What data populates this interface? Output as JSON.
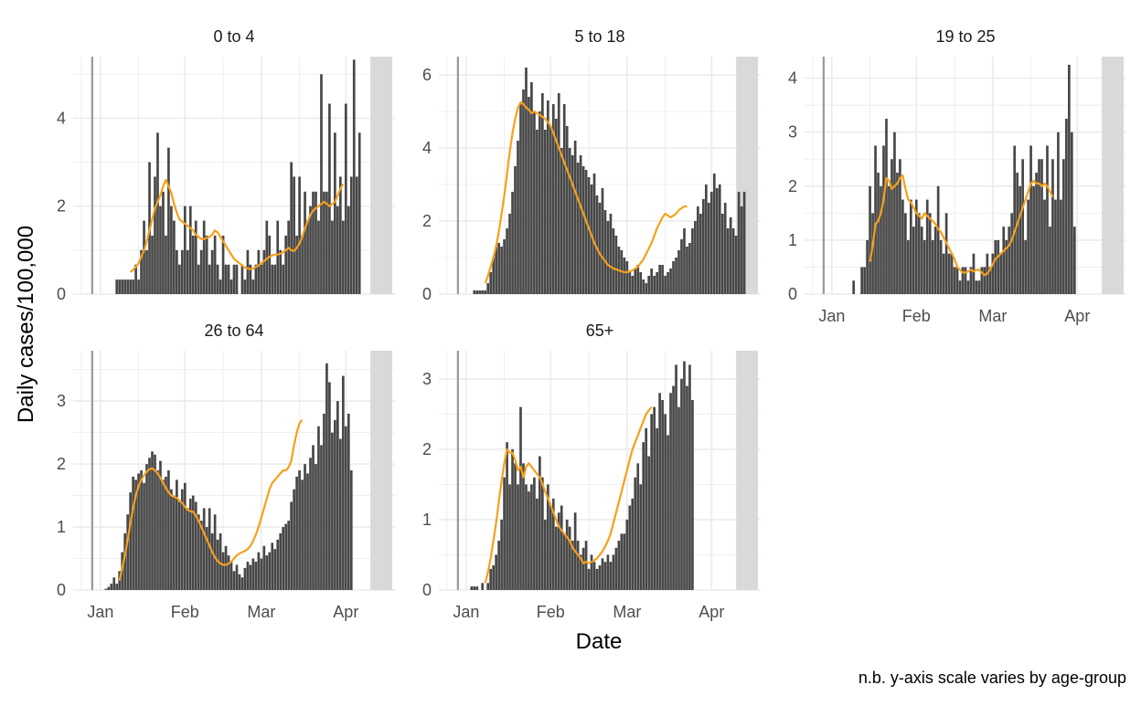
{
  "ylabel": "Daily cases/100,000",
  "xlabel": "Date",
  "note": "n.b. y-axis scale varies by age-group",
  "colors": {
    "bar": "#474747",
    "line": "#f7a01c",
    "shade": "#d9d9d9",
    "grid": "#ebebeb",
    "vline": "#999999"
  },
  "chart_data": [
    {
      "type": "bar",
      "title": "0 to 4",
      "x_range": [
        "2020-12-22",
        "2021-04-19"
      ],
      "ylim": [
        0,
        5.4
      ],
      "y_ticks": [
        0,
        2,
        4
      ],
      "x_ticks": [
        "Jan",
        "Feb",
        "Mar",
        "Apr"
      ],
      "vline_date": "2020-12-29",
      "shaded_range": [
        "2021-04-10",
        "2021-04-18"
      ],
      "bars_start": "2021-01-07",
      "bars": [
        0.33,
        0.33,
        0.33,
        0.33,
        0.33,
        0.33,
        0.33,
        0.67,
        0.33,
        1.0,
        1.67,
        1.0,
        3.0,
        1.33,
        2.67,
        3.67,
        2.0,
        2.33,
        1.33,
        3.33,
        2.0,
        1.67,
        1.0,
        0.67,
        1.0,
        2.0,
        1.0,
        2.0,
        1.33,
        1.67,
        0.67,
        1.0,
        1.67,
        1.33,
        0.67,
        1.0,
        1.33,
        0.67,
        0.33,
        1.33,
        0.67,
        0.67,
        0.33,
        0.67,
        0.67,
        0.0,
        0.67,
        0.33,
        1.0,
        0.67,
        0.33,
        0.67,
        1.0,
        0.67,
        1.0,
        1.67,
        1.33,
        0.67,
        0.67,
        1.67,
        1.0,
        0.67,
        1.33,
        1.67,
        3.0,
        2.67,
        1.33,
        2.67,
        1.33,
        2.33,
        1.67,
        2.0,
        2.33,
        2.33,
        1.67,
        5.0,
        2.33,
        2.33,
        4.33,
        1.67,
        3.67,
        2.0,
        2.67,
        1.67,
        4.33,
        2.0,
        2.67,
        5.33,
        2.67,
        3.67
      ],
      "line_start": "2021-01-12",
      "line": [
        0.5,
        0.55,
        0.62,
        0.7,
        0.85,
        1.0,
        1.2,
        1.45,
        1.7,
        1.95,
        2.1,
        2.25,
        2.45,
        2.6,
        2.45,
        2.3,
        2.05,
        1.85,
        1.7,
        1.65,
        1.6,
        1.55,
        1.5,
        1.45,
        1.35,
        1.3,
        1.25,
        1.25,
        1.28,
        1.3,
        1.35,
        1.45,
        1.4,
        1.3,
        1.2,
        1.1,
        1.0,
        0.9,
        0.8,
        0.75,
        0.7,
        0.65,
        0.6,
        0.58,
        0.57,
        0.58,
        0.62,
        0.65,
        0.7,
        0.75,
        0.8,
        0.85,
        0.88,
        0.9,
        0.9,
        0.92,
        0.95,
        1.0,
        1.05,
        1.0,
        0.98,
        1.05,
        1.15,
        1.3,
        1.5,
        1.65,
        1.8,
        1.9,
        1.95,
        2.0,
        2.05,
        2.1,
        2.05,
        2.0,
        2.05,
        2.1,
        2.25,
        2.4,
        2.5
      ]
    },
    {
      "type": "bar",
      "title": "5 to 18",
      "x_range": [
        "2020-12-22",
        "2021-04-19"
      ],
      "ylim": [
        0,
        6.5
      ],
      "y_ticks": [
        0,
        2,
        4,
        6
      ],
      "x_ticks": [
        "Jan",
        "Feb",
        "Mar",
        "Apr"
      ],
      "vline_date": "2020-12-29",
      "shaded_range": [
        "2021-04-10",
        "2021-04-18"
      ],
      "bars_start": "2021-01-04",
      "bars": [
        0.1,
        0.1,
        0.1,
        0.1,
        0.1,
        0.3,
        0.6,
        1.0,
        1.3,
        1.4,
        1.3,
        1.5,
        1.8,
        2.2,
        2.8,
        3.5,
        4.2,
        5.2,
        5.6,
        6.2,
        5.4,
        5.8,
        5.0,
        4.5,
        5.0,
        5.5,
        4.5,
        5.3,
        4.6,
        5.2,
        4.8,
        5.5,
        4.0,
        5.2,
        4.6,
        4.0,
        3.8,
        4.2,
        3.6,
        3.8,
        3.5,
        3.4,
        3.2,
        3.0,
        3.3,
        2.7,
        2.5,
        2.9,
        2.3,
        2.0,
        2.2,
        1.8,
        1.6,
        1.3,
        1.2,
        1.0,
        0.9,
        0.6,
        0.5,
        0.7,
        0.8,
        0.6,
        0.4,
        0.3,
        0.5,
        0.7,
        0.5,
        0.6,
        0.8,
        0.8,
        0.5,
        0.6,
        0.7,
        0.9,
        1.0,
        1.2,
        1.5,
        1.8,
        1.3,
        1.4,
        1.8,
        2.0,
        2.4,
        2.2,
        2.6,
        3.0,
        2.5,
        2.8,
        3.3,
        2.9,
        3.0,
        2.2,
        2.5,
        1.8,
        2.1,
        1.8,
        1.6,
        2.8,
        2.4,
        2.8
      ],
      "line_start": "2021-01-08",
      "line": [
        0.3,
        0.5,
        0.75,
        1.0,
        1.3,
        1.7,
        2.2,
        2.7,
        3.3,
        3.9,
        4.4,
        4.8,
        5.1,
        5.25,
        5.2,
        5.1,
        5.05,
        4.95,
        5.0,
        4.95,
        4.9,
        4.85,
        4.8,
        4.7,
        4.6,
        4.4,
        4.2,
        4.0,
        3.8,
        3.6,
        3.4,
        3.2,
        3.0,
        2.8,
        2.6,
        2.4,
        2.2,
        2.0,
        1.8,
        1.6,
        1.4,
        1.25,
        1.1,
        1.0,
        0.9,
        0.8,
        0.75,
        0.7,
        0.68,
        0.65,
        0.62,
        0.6,
        0.6,
        0.62,
        0.65,
        0.7,
        0.75,
        0.85,
        0.95,
        1.1,
        1.25,
        1.4,
        1.6,
        1.8,
        1.95,
        2.1,
        2.2,
        2.15,
        2.1,
        2.15,
        2.2,
        2.3,
        2.35,
        2.4,
        2.4
      ]
    },
    {
      "type": "bar",
      "title": "19 to 25",
      "x_range": [
        "2020-12-22",
        "2021-04-19"
      ],
      "ylim": [
        0,
        4.4
      ],
      "y_ticks": [
        0,
        1,
        2,
        3,
        4
      ],
      "x_ticks": [
        "Jan",
        "Feb",
        "Mar",
        "Apr"
      ],
      "vline_date": "2020-12-29",
      "shaded_range": [
        "2021-04-10",
        "2021-04-18"
      ],
      "bars_start": "2021-01-09",
      "bars": [
        0.25,
        0.0,
        0.0,
        0.5,
        0.5,
        1.0,
        2.0,
        1.5,
        2.75,
        2.25,
        2.0,
        2.75,
        3.25,
        2.0,
        2.5,
        3.0,
        2.25,
        2.5,
        1.75,
        1.5,
        1.0,
        1.75,
        1.25,
        1.75,
        1.5,
        1.25,
        1.0,
        1.75,
        1.5,
        1.0,
        1.25,
        2.0,
        1.0,
        0.75,
        1.5,
        0.75,
        0.75,
        0.5,
        0.5,
        0.25,
        0.5,
        0.5,
        0.25,
        0.5,
        0.75,
        0.25,
        0.25,
        0.5,
        0.5,
        0.75,
        0.5,
        0.75,
        1.0,
        1.0,
        0.75,
        1.25,
        1.0,
        1.25,
        1.5,
        2.75,
        2.25,
        2.0,
        2.5,
        1.0,
        1.75,
        2.75,
        2.0,
        2.25,
        2.5,
        2.5,
        1.75,
        2.75,
        1.25,
        2.5,
        1.75,
        3.0,
        1.75,
        2.5,
        3.25,
        4.25,
        3.0,
        1.25
      ],
      "line_start": "2021-01-15",
      "line": [
        0.6,
        0.9,
        1.3,
        1.35,
        1.5,
        1.75,
        2.15,
        2.1,
        1.95,
        2.0,
        2.05,
        2.15,
        2.2,
        1.95,
        1.75,
        1.7,
        1.6,
        1.5,
        1.45,
        1.4,
        1.5,
        1.45,
        1.4,
        1.35,
        1.3,
        1.2,
        1.15,
        1.05,
        0.95,
        0.85,
        0.75,
        0.65,
        0.5,
        0.45,
        0.4,
        0.4,
        0.42,
        0.45,
        0.42,
        0.45,
        0.45,
        0.4,
        0.35,
        0.38,
        0.45,
        0.55,
        0.65,
        0.7,
        0.75,
        0.8,
        0.85,
        0.9,
        1.0,
        1.15,
        1.3,
        1.45,
        1.6,
        1.75,
        1.9,
        2.05,
        2.1,
        2.05,
        2.05,
        2.0,
        2.05,
        2.0,
        1.9,
        1.8
      ]
    },
    {
      "type": "bar",
      "title": "26 to 64",
      "x_range": [
        "2020-12-22",
        "2021-04-19"
      ],
      "ylim": [
        0,
        3.8
      ],
      "y_ticks": [
        0,
        1,
        2,
        3
      ],
      "x_ticks": [
        "Jan",
        "Feb",
        "Mar",
        "Apr"
      ],
      "vline_date": "2020-12-29",
      "shaded_range": [
        "2021-04-10",
        "2021-04-18"
      ],
      "bars_start": "2021-01-02",
      "bars": [
        0.0,
        0.02,
        0.05,
        0.1,
        0.2,
        0.1,
        0.3,
        0.6,
        0.9,
        1.2,
        1.55,
        1.8,
        1.75,
        1.85,
        1.9,
        1.7,
        2.0,
        2.1,
        2.2,
        2.15,
        1.9,
        2.05,
        1.75,
        1.8,
        1.9,
        1.6,
        1.5,
        1.75,
        1.4,
        1.6,
        1.7,
        1.3,
        1.45,
        1.5,
        1.4,
        1.2,
        1.1,
        1.3,
        1.0,
        1.3,
        0.9,
        1.2,
        0.8,
        0.9,
        0.6,
        0.7,
        0.55,
        0.45,
        0.3,
        0.4,
        0.25,
        0.2,
        0.35,
        0.45,
        0.4,
        0.5,
        0.45,
        0.6,
        0.5,
        0.7,
        0.55,
        0.6,
        0.75,
        0.65,
        0.8,
        0.9,
        1.0,
        1.05,
        1.1,
        1.4,
        1.6,
        1.8,
        1.9,
        1.75,
        2.0,
        1.85,
        2.1,
        2.3,
        2.0,
        2.6,
        2.3,
        2.8,
        3.6,
        3.3,
        2.5,
        2.7,
        3.0,
        2.4,
        3.4,
        2.6,
        2.8,
        1.9
      ],
      "line_start": "2021-01-08",
      "line": [
        0.15,
        0.35,
        0.55,
        0.8,
        1.05,
        1.3,
        1.5,
        1.65,
        1.75,
        1.82,
        1.88,
        1.92,
        1.93,
        1.9,
        1.85,
        1.78,
        1.7,
        1.62,
        1.55,
        1.5,
        1.48,
        1.46,
        1.42,
        1.38,
        1.32,
        1.27,
        1.25,
        1.24,
        1.18,
        1.1,
        1.0,
        0.9,
        0.8,
        0.7,
        0.6,
        0.52,
        0.46,
        0.42,
        0.4,
        0.4,
        0.42,
        0.45,
        0.5,
        0.55,
        0.58,
        0.6,
        0.62,
        0.65,
        0.7,
        0.78,
        0.88,
        1.0,
        1.15,
        1.3,
        1.45,
        1.6,
        1.7,
        1.75,
        1.8,
        1.85,
        1.9,
        1.9,
        1.95,
        2.05,
        2.3,
        2.5,
        2.65,
        2.7
      ]
    },
    {
      "type": "bar",
      "title": "65+",
      "x_range": [
        "2020-12-22",
        "2021-04-19"
      ],
      "ylim": [
        0,
        3.4
      ],
      "y_ticks": [
        0,
        1,
        2,
        3
      ],
      "x_ticks": [
        "Jan",
        "Feb",
        "Mar",
        "Apr"
      ],
      "vline_date": "2020-12-29",
      "shaded_range": [
        "2021-04-10",
        "2021-04-18"
      ],
      "bars_start": "2021-01-03",
      "bars": [
        0.05,
        0.05,
        0.05,
        0.0,
        0.1,
        0.0,
        0.1,
        0.3,
        0.35,
        0.5,
        0.7,
        1.0,
        1.6,
        2.1,
        1.5,
        2.0,
        1.8,
        1.5,
        2.6,
        1.8,
        1.5,
        1.4,
        1.5,
        1.6,
        1.3,
        1.9,
        1.6,
        1.0,
        1.5,
        1.2,
        1.3,
        0.9,
        1.1,
        1.2,
        0.8,
        1.0,
        0.9,
        0.7,
        1.1,
        0.7,
        0.5,
        0.6,
        0.7,
        0.3,
        0.5,
        0.4,
        0.3,
        0.35,
        0.45,
        0.4,
        0.5,
        0.4,
        0.5,
        0.6,
        0.7,
        0.8,
        0.8,
        1.0,
        1.2,
        1.3,
        1.6,
        1.8,
        1.5,
        2.1,
        2.3,
        1.9,
        2.5,
        2.6,
        2.3,
        2.8,
        2.7,
        2.5,
        2.2,
        2.8,
        2.9,
        3.2,
        2.6,
        3.0,
        3.25,
        2.9,
        3.2,
        2.7
      ],
      "line_start": "2021-01-08",
      "line": [
        0.1,
        0.25,
        0.45,
        0.7,
        0.95,
        1.25,
        1.55,
        1.8,
        2.0,
        1.95,
        1.95,
        1.85,
        1.7,
        1.75,
        1.6,
        1.75,
        1.8,
        1.75,
        1.7,
        1.65,
        1.6,
        1.5,
        1.4,
        1.3,
        1.2,
        1.1,
        1.0,
        0.9,
        0.85,
        0.8,
        0.75,
        0.7,
        0.6,
        0.55,
        0.5,
        0.45,
        0.38,
        0.4,
        0.38,
        0.4,
        0.42,
        0.45,
        0.5,
        0.55,
        0.62,
        0.7,
        0.8,
        0.95,
        1.1,
        1.25,
        1.4,
        1.55,
        1.7,
        1.85,
        2.0,
        2.1,
        2.2,
        2.3,
        2.4,
        2.5,
        2.55,
        2.6
      ]
    }
  ]
}
